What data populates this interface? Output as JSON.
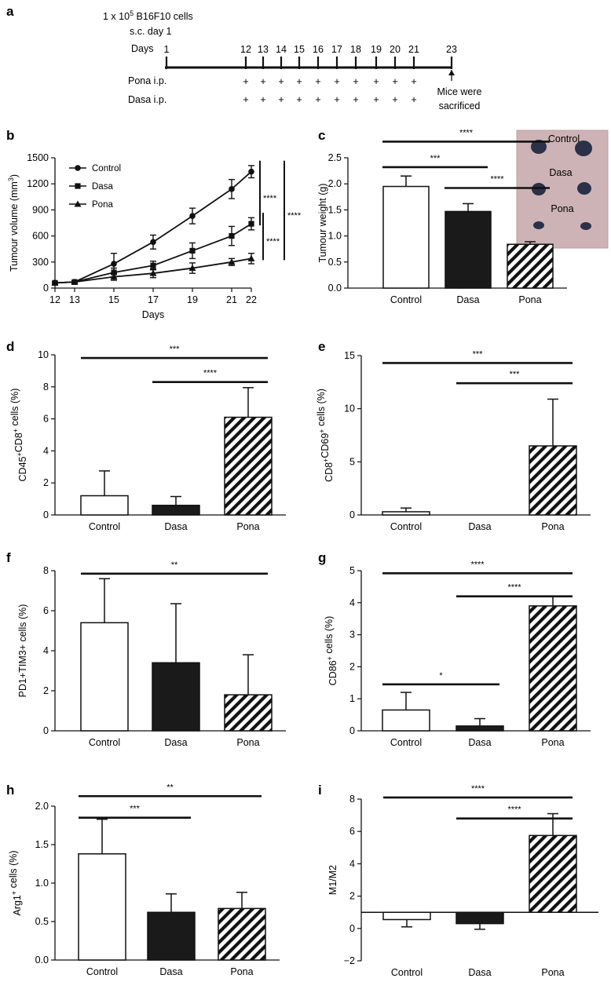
{
  "colors": {
    "control": "#ffffff",
    "dasa": "#1a1a1a",
    "line": "#111111",
    "photo_bg": "#cdb3b5",
    "tumour": "#2b3148"
  },
  "timeline": {
    "letter": "a",
    "line1": "1 x 10",
    "line1_sup": "5",
    "line1_rest": " B16F10 cells",
    "line2": "s.c. day 1",
    "days_label": "Days",
    "days": [
      1,
      12,
      13,
      14,
      15,
      16,
      17,
      18,
      19,
      20,
      21,
      23
    ],
    "pona_label": "Pona i.p.",
    "dasa_label": "Dasa i.p.",
    "plus": "+",
    "sacrifice_1": "Mice were",
    "sacrifice_2": "sacrificed"
  },
  "photo": {
    "labels": [
      "Control",
      "Dasa",
      "Pona"
    ]
  },
  "chart_data": [
    {
      "id": "b",
      "type": "line",
      "letter": "b",
      "xlabel": "Days",
      "ylabel": "Tumour volume (mm",
      "ylabel_sup": "3",
      "ylabel_end": ")",
      "x": [
        12,
        13,
        15,
        17,
        19,
        21,
        22
      ],
      "xticks": [
        12,
        13,
        15,
        17,
        19,
        21,
        22
      ],
      "ylim": [
        0,
        1500
      ],
      "yticks": [
        0,
        300,
        600,
        900,
        1200,
        1500
      ],
      "series": [
        {
          "name": "Control",
          "marker": "circle",
          "values": [
            60,
            70,
            280,
            530,
            830,
            1140,
            1340
          ],
          "errors": [
            10,
            15,
            120,
            80,
            90,
            110,
            70
          ]
        },
        {
          "name": "Dasa",
          "marker": "square",
          "values": [
            60,
            70,
            180,
            260,
            430,
            600,
            740
          ],
          "errors": [
            10,
            10,
            50,
            50,
            90,
            110,
            70
          ]
        },
        {
          "name": "Pona",
          "marker": "triangle",
          "values": [
            60,
            70,
            130,
            170,
            230,
            300,
            340
          ],
          "errors": [
            10,
            10,
            40,
            50,
            60,
            40,
            60
          ]
        }
      ],
      "significance": [
        {
          "label": "****",
          "pair": "Control-Dasa"
        },
        {
          "label": "****",
          "pair": "Dasa-Pona"
        },
        {
          "label": "****",
          "pair": "Control-Pona"
        }
      ]
    },
    {
      "id": "c",
      "type": "bar",
      "letter": "c",
      "categories": [
        "Control",
        "Dasa",
        "Pona"
      ],
      "values": [
        1.95,
        1.47,
        0.84
      ],
      "errors": [
        0.2,
        0.15,
        0.05
      ],
      "ylabel": "Tumour weight (g)",
      "ylim": [
        0,
        2.5
      ],
      "yticks": [
        0.0,
        0.5,
        1.0,
        1.5,
        2.0,
        2.5
      ],
      "tick_decimals": 1,
      "significance": [
        {
          "from": 0,
          "to": 2,
          "label": "****",
          "y": 2.81
        },
        {
          "from": 0,
          "to": 1,
          "label": "***",
          "y": 2.32
        },
        {
          "from": 1,
          "to": 2,
          "label": "****",
          "y": 1.92
        }
      ]
    },
    {
      "id": "d",
      "type": "bar",
      "letter": "d",
      "categories": [
        "Control",
        "Dasa",
        "Pona"
      ],
      "values": [
        1.2,
        0.6,
        6.1
      ],
      "errors": [
        1.55,
        0.55,
        1.85
      ],
      "ylabel": "CD45",
      "ylabel_parts": [
        "CD45",
        "+",
        "CD8",
        "+",
        " cells (%)"
      ],
      "ylim": [
        0,
        10
      ],
      "yticks": [
        0,
        2,
        4,
        6,
        8,
        10
      ],
      "tick_decimals": 0,
      "significance": [
        {
          "from": 0,
          "to": 2,
          "label": "***",
          "y": 9.8
        },
        {
          "from": 1,
          "to": 2,
          "label": "****",
          "y": 8.3
        }
      ]
    },
    {
      "id": "e",
      "type": "bar",
      "letter": "e",
      "categories": [
        "Control",
        "Dasa",
        "Pona"
      ],
      "values": [
        0.3,
        0.0,
        6.5
      ],
      "errors": [
        0.35,
        0.0,
        4.4
      ],
      "ylabel": "CD8",
      "ylabel_parts": [
        "CD8",
        "+",
        "CD69",
        "+",
        " cells (%)"
      ],
      "ylim": [
        0,
        15
      ],
      "yticks": [
        0,
        5,
        10,
        15
      ],
      "tick_decimals": 0,
      "significance": [
        {
          "from": 0,
          "to": 2,
          "label": "***",
          "y": 14.3
        },
        {
          "from": 1,
          "to": 2,
          "label": "***",
          "y": 12.4
        }
      ]
    },
    {
      "id": "f",
      "type": "bar",
      "letter": "f",
      "categories": [
        "Control",
        "Dasa",
        "Pona"
      ],
      "values": [
        5.4,
        3.4,
        1.8
      ],
      "errors": [
        2.2,
        2.95,
        2.0
      ],
      "ylabel": "PD1+TIM3+ cells (%)",
      "ylim": [
        0,
        8
      ],
      "yticks": [
        0,
        2,
        4,
        6,
        8
      ],
      "tick_decimals": 0,
      "significance": [
        {
          "from": 0,
          "to": 2,
          "label": "**",
          "y": 7.85
        }
      ]
    },
    {
      "id": "g",
      "type": "bar",
      "letter": "g",
      "categories": [
        "Control",
        "Dasa",
        "Pona"
      ],
      "values": [
        0.65,
        0.15,
        3.9
      ],
      "errors": [
        0.55,
        0.23,
        0.3
      ],
      "ylabel": "CD86",
      "ylabel_parts": [
        "CD86",
        "+",
        " cells (%)"
      ],
      "ylim": [
        0,
        5
      ],
      "yticks": [
        0,
        1,
        2,
        3,
        4,
        5
      ],
      "tick_decimals": 0,
      "significance": [
        {
          "from": 0,
          "to": 2,
          "label": "****",
          "y": 4.92
        },
        {
          "from": 1,
          "to": 2,
          "label": "****",
          "y": 4.2
        },
        {
          "from": 0,
          "to": 1,
          "label": "*",
          "y": 1.45
        }
      ]
    },
    {
      "id": "h",
      "type": "bar",
      "letter": "h",
      "categories": [
        "Control",
        "Dasa",
        "Pona"
      ],
      "values": [
        1.38,
        0.62,
        0.67
      ],
      "errors": [
        0.45,
        0.24,
        0.21
      ],
      "ylabel": "Arg1",
      "ylabel_parts": [
        "Arg1",
        "+",
        " cells (%)"
      ],
      "ylim": [
        0,
        2.0
      ],
      "yticks": [
        0.0,
        0.5,
        1.0,
        1.5,
        2.0
      ],
      "tick_decimals": 1,
      "significance": [
        {
          "from": 0,
          "to": 2,
          "label": "**",
          "y": 2.13
        },
        {
          "from": 0,
          "to": 1,
          "label": "***",
          "y": 1.85
        }
      ]
    },
    {
      "id": "i",
      "type": "bar",
      "letter": "i",
      "categories": [
        "Control",
        "Dasa",
        "Pona"
      ],
      "values": [
        0.55,
        0.3,
        5.75
      ],
      "errors": [
        0.45,
        0.35,
        1.35
      ],
      "baseline": 1,
      "ylabel": "M1/M2",
      "ylim": [
        -2,
        8
      ],
      "yticks": [
        -2,
        0,
        2,
        4,
        6,
        8
      ],
      "tick_decimals": 0,
      "significance": [
        {
          "from": 0,
          "to": 2,
          "label": "****",
          "y": 8.1
        },
        {
          "from": 1,
          "to": 2,
          "label": "****",
          "y": 6.8
        }
      ]
    }
  ]
}
